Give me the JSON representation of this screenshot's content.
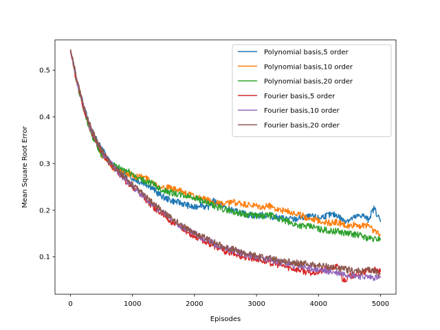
{
  "chart_data": {
    "type": "line",
    "title": "",
    "xlabel": "Episodes",
    "ylabel": "Mean Square Root Error",
    "xlim": [
      -250,
      5250
    ],
    "ylim": [
      0.02,
      0.565
    ],
    "xticks": [
      0,
      1000,
      2000,
      3000,
      4000,
      5000
    ],
    "yticks": [
      0.1,
      0.2,
      0.3,
      0.4,
      0.5
    ],
    "legend_position": "top-right",
    "grid": false,
    "series": [
      {
        "name": "Polynomial basis,5 order",
        "color": "#1f77b4",
        "points": [
          [
            0,
            0.543
          ],
          [
            100,
            0.48
          ],
          [
            200,
            0.43
          ],
          [
            300,
            0.385
          ],
          [
            400,
            0.355
          ],
          [
            500,
            0.335
          ],
          [
            600,
            0.31
          ],
          [
            700,
            0.295
          ],
          [
            800,
            0.285
          ],
          [
            900,
            0.275
          ],
          [
            1000,
            0.27
          ],
          [
            1100,
            0.262
          ],
          [
            1200,
            0.258
          ],
          [
            1300,
            0.25
          ],
          [
            1400,
            0.237
          ],
          [
            1500,
            0.228
          ],
          [
            1600,
            0.222
          ],
          [
            1700,
            0.218
          ],
          [
            1800,
            0.215
          ],
          [
            1900,
            0.21
          ],
          [
            2000,
            0.205
          ],
          [
            2100,
            0.214
          ],
          [
            2200,
            0.204
          ],
          [
            2300,
            0.22
          ],
          [
            2400,
            0.214
          ],
          [
            2500,
            0.205
          ],
          [
            2600,
            0.2
          ],
          [
            2700,
            0.196
          ],
          [
            2800,
            0.192
          ],
          [
            2900,
            0.19
          ],
          [
            3000,
            0.188
          ],
          [
            3100,
            0.19
          ],
          [
            3200,
            0.188
          ],
          [
            3300,
            0.185
          ],
          [
            3400,
            0.183
          ],
          [
            3500,
            0.182
          ],
          [
            3600,
            0.18
          ],
          [
            3700,
            0.183
          ],
          [
            3800,
            0.185
          ],
          [
            3900,
            0.186
          ],
          [
            4000,
            0.183
          ],
          [
            4100,
            0.188
          ],
          [
            4200,
            0.19
          ],
          [
            4300,
            0.19
          ],
          [
            4400,
            0.178
          ],
          [
            4500,
            0.18
          ],
          [
            4600,
            0.185
          ],
          [
            4700,
            0.19
          ],
          [
            4800,
            0.18
          ],
          [
            4900,
            0.205
          ],
          [
            5000,
            0.175
          ]
        ]
      },
      {
        "name": "Polynomial basis,10 order",
        "color": "#ff7f0e",
        "points": [
          [
            0,
            0.543
          ],
          [
            100,
            0.48
          ],
          [
            200,
            0.43
          ],
          [
            300,
            0.385
          ],
          [
            400,
            0.35
          ],
          [
            500,
            0.32
          ],
          [
            600,
            0.305
          ],
          [
            700,
            0.29
          ],
          [
            800,
            0.285
          ],
          [
            900,
            0.28
          ],
          [
            1000,
            0.275
          ],
          [
            1100,
            0.272
          ],
          [
            1200,
            0.27
          ],
          [
            1300,
            0.262
          ],
          [
            1400,
            0.255
          ],
          [
            1500,
            0.25
          ],
          [
            1600,
            0.248
          ],
          [
            1700,
            0.243
          ],
          [
            1800,
            0.24
          ],
          [
            1900,
            0.235
          ],
          [
            2000,
            0.228
          ],
          [
            2100,
            0.225
          ],
          [
            2200,
            0.222
          ],
          [
            2300,
            0.218
          ],
          [
            2400,
            0.215
          ],
          [
            2500,
            0.212
          ],
          [
            2600,
            0.218
          ],
          [
            2700,
            0.215
          ],
          [
            2800,
            0.212
          ],
          [
            2900,
            0.21
          ],
          [
            3000,
            0.208
          ],
          [
            3100,
            0.205
          ],
          [
            3200,
            0.21
          ],
          [
            3300,
            0.205
          ],
          [
            3400,
            0.2
          ],
          [
            3500,
            0.198
          ],
          [
            3600,
            0.195
          ],
          [
            3700,
            0.19
          ],
          [
            3800,
            0.185
          ],
          [
            3900,
            0.182
          ],
          [
            4000,
            0.178
          ],
          [
            4100,
            0.175
          ],
          [
            4200,
            0.172
          ],
          [
            4300,
            0.175
          ],
          [
            4400,
            0.168
          ],
          [
            4500,
            0.165
          ],
          [
            4600,
            0.17
          ],
          [
            4700,
            0.165
          ],
          [
            4800,
            0.17
          ],
          [
            4900,
            0.155
          ],
          [
            5000,
            0.148
          ]
        ]
      },
      {
        "name": "Polynomial basis,20 order",
        "color": "#2ca02c",
        "points": [
          [
            0,
            0.543
          ],
          [
            100,
            0.475
          ],
          [
            200,
            0.425
          ],
          [
            300,
            0.375
          ],
          [
            400,
            0.345
          ],
          [
            500,
            0.318
          ],
          [
            600,
            0.305
          ],
          [
            700,
            0.295
          ],
          [
            800,
            0.29
          ],
          [
            900,
            0.285
          ],
          [
            1000,
            0.278
          ],
          [
            1100,
            0.268
          ],
          [
            1200,
            0.262
          ],
          [
            1300,
            0.258
          ],
          [
            1400,
            0.25
          ],
          [
            1500,
            0.242
          ],
          [
            1600,
            0.238
          ],
          [
            1700,
            0.235
          ],
          [
            1800,
            0.232
          ],
          [
            1900,
            0.23
          ],
          [
            2000,
            0.228
          ],
          [
            2100,
            0.222
          ],
          [
            2200,
            0.215
          ],
          [
            2300,
            0.21
          ],
          [
            2400,
            0.205
          ],
          [
            2500,
            0.202
          ],
          [
            2600,
            0.198
          ],
          [
            2700,
            0.195
          ],
          [
            2800,
            0.192
          ],
          [
            2900,
            0.19
          ],
          [
            3000,
            0.188
          ],
          [
            3100,
            0.186
          ],
          [
            3200,
            0.19
          ],
          [
            3300,
            0.185
          ],
          [
            3400,
            0.18
          ],
          [
            3500,
            0.175
          ],
          [
            3600,
            0.17
          ],
          [
            3700,
            0.168
          ],
          [
            3800,
            0.165
          ],
          [
            3900,
            0.165
          ],
          [
            4000,
            0.16
          ],
          [
            4100,
            0.158
          ],
          [
            4200,
            0.155
          ],
          [
            4300,
            0.155
          ],
          [
            4400,
            0.152
          ],
          [
            4500,
            0.15
          ],
          [
            4600,
            0.148
          ],
          [
            4700,
            0.145
          ],
          [
            4800,
            0.14
          ],
          [
            4900,
            0.138
          ],
          [
            5000,
            0.14
          ]
        ]
      },
      {
        "name": "Fourier basis,5 order",
        "color": "#d62728",
        "points": [
          [
            0,
            0.54
          ],
          [
            100,
            0.475
          ],
          [
            200,
            0.425
          ],
          [
            300,
            0.38
          ],
          [
            400,
            0.35
          ],
          [
            500,
            0.325
          ],
          [
            600,
            0.305
          ],
          [
            700,
            0.29
          ],
          [
            800,
            0.275
          ],
          [
            900,
            0.262
          ],
          [
            1000,
            0.25
          ],
          [
            1100,
            0.238
          ],
          [
            1200,
            0.225
          ],
          [
            1300,
            0.212
          ],
          [
            1400,
            0.2
          ],
          [
            1500,
            0.19
          ],
          [
            1600,
            0.178
          ],
          [
            1700,
            0.168
          ],
          [
            1800,
            0.16
          ],
          [
            1900,
            0.152
          ],
          [
            2000,
            0.145
          ],
          [
            2100,
            0.138
          ],
          [
            2200,
            0.132
          ],
          [
            2300,
            0.125
          ],
          [
            2400,
            0.118
          ],
          [
            2500,
            0.112
          ],
          [
            2600,
            0.108
          ],
          [
            2700,
            0.104
          ],
          [
            2800,
            0.1
          ],
          [
            2900,
            0.098
          ],
          [
            3000,
            0.096
          ],
          [
            3100,
            0.092
          ],
          [
            3200,
            0.088
          ],
          [
            3300,
            0.085
          ],
          [
            3400,
            0.082
          ],
          [
            3500,
            0.078
          ],
          [
            3600,
            0.075
          ],
          [
            3700,
            0.072
          ],
          [
            3800,
            0.068
          ],
          [
            3900,
            0.065
          ],
          [
            4000,
            0.068
          ],
          [
            4100,
            0.072
          ],
          [
            4200,
            0.075
          ],
          [
            4300,
            0.08
          ],
          [
            4400,
            0.05
          ],
          [
            4500,
            0.058
          ],
          [
            4600,
            0.062
          ],
          [
            4700,
            0.065
          ],
          [
            4800,
            0.07
          ],
          [
            4900,
            0.072
          ],
          [
            5000,
            0.068
          ]
        ]
      },
      {
        "name": "Fourier basis,10 order",
        "color": "#9467bd",
        "points": [
          [
            0,
            0.543
          ],
          [
            100,
            0.478
          ],
          [
            200,
            0.428
          ],
          [
            300,
            0.383
          ],
          [
            400,
            0.352
          ],
          [
            500,
            0.327
          ],
          [
            600,
            0.307
          ],
          [
            700,
            0.292
          ],
          [
            800,
            0.277
          ],
          [
            900,
            0.264
          ],
          [
            1000,
            0.252
          ],
          [
            1100,
            0.24
          ],
          [
            1200,
            0.228
          ],
          [
            1300,
            0.216
          ],
          [
            1400,
            0.205
          ],
          [
            1500,
            0.195
          ],
          [
            1600,
            0.184
          ],
          [
            1700,
            0.174
          ],
          [
            1800,
            0.165
          ],
          [
            1900,
            0.157
          ],
          [
            2000,
            0.15
          ],
          [
            2100,
            0.143
          ],
          [
            2200,
            0.137
          ],
          [
            2300,
            0.13
          ],
          [
            2400,
            0.124
          ],
          [
            2500,
            0.118
          ],
          [
            2600,
            0.115
          ],
          [
            2700,
            0.11
          ],
          [
            2800,
            0.106
          ],
          [
            2900,
            0.103
          ],
          [
            3000,
            0.1
          ],
          [
            3100,
            0.097
          ],
          [
            3200,
            0.094
          ],
          [
            3300,
            0.09
          ],
          [
            3400,
            0.088
          ],
          [
            3500,
            0.085
          ],
          [
            3600,
            0.082
          ],
          [
            3700,
            0.08
          ],
          [
            3800,
            0.077
          ],
          [
            3900,
            0.075
          ],
          [
            4000,
            0.072
          ],
          [
            4100,
            0.07
          ],
          [
            4200,
            0.068
          ],
          [
            4300,
            0.066
          ],
          [
            4400,
            0.064
          ],
          [
            4500,
            0.062
          ],
          [
            4600,
            0.06
          ],
          [
            4700,
            0.058
          ],
          [
            4800,
            0.057
          ],
          [
            4900,
            0.056
          ],
          [
            5000,
            0.055
          ]
        ]
      },
      {
        "name": "Fourier basis,20 order",
        "color": "#8c564b",
        "points": [
          [
            0,
            0.545
          ],
          [
            100,
            0.48
          ],
          [
            200,
            0.43
          ],
          [
            300,
            0.387
          ],
          [
            400,
            0.355
          ],
          [
            500,
            0.33
          ],
          [
            600,
            0.31
          ],
          [
            700,
            0.294
          ],
          [
            800,
            0.279
          ],
          [
            900,
            0.266
          ],
          [
            1000,
            0.254
          ],
          [
            1100,
            0.242
          ],
          [
            1200,
            0.23
          ],
          [
            1300,
            0.218
          ],
          [
            1400,
            0.207
          ],
          [
            1500,
            0.197
          ],
          [
            1600,
            0.186
          ],
          [
            1700,
            0.176
          ],
          [
            1800,
            0.167
          ],
          [
            1900,
            0.159
          ],
          [
            2000,
            0.152
          ],
          [
            2100,
            0.145
          ],
          [
            2200,
            0.139
          ],
          [
            2300,
            0.132
          ],
          [
            2400,
            0.126
          ],
          [
            2500,
            0.12
          ],
          [
            2600,
            0.117
          ],
          [
            2700,
            0.112
          ],
          [
            2800,
            0.108
          ],
          [
            2900,
            0.105
          ],
          [
            3000,
            0.102
          ],
          [
            3100,
            0.099
          ],
          [
            3200,
            0.097
          ],
          [
            3300,
            0.094
          ],
          [
            3400,
            0.092
          ],
          [
            3500,
            0.09
          ],
          [
            3600,
            0.088
          ],
          [
            3700,
            0.086
          ],
          [
            3800,
            0.085
          ],
          [
            3900,
            0.083
          ],
          [
            4000,
            0.082
          ],
          [
            4100,
            0.08
          ],
          [
            4200,
            0.078
          ],
          [
            4300,
            0.076
          ],
          [
            4400,
            0.074
          ],
          [
            4500,
            0.072
          ],
          [
            4600,
            0.07
          ],
          [
            4700,
            0.068
          ],
          [
            4800,
            0.072
          ],
          [
            4900,
            0.07
          ],
          [
            5000,
            0.065
          ]
        ]
      }
    ]
  }
}
